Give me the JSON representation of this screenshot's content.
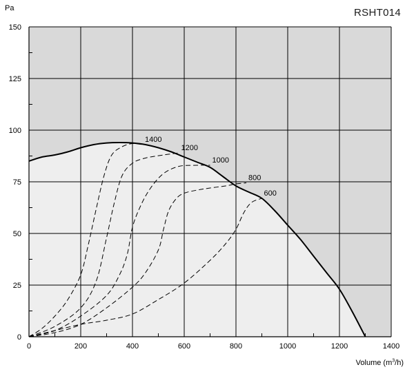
{
  "chart_data": {
    "type": "line",
    "title": "RSHT014",
    "ylabel": "Pa",
    "xlabel_main": "Volume (m",
    "xlabel_sup": "3",
    "xlabel_end": "/h)",
    "xlim": [
      0,
      1400
    ],
    "ylim": [
      0,
      150
    ],
    "x_ticks": [
      0,
      200,
      400,
      600,
      800,
      1000,
      1200,
      1400
    ],
    "y_ticks": [
      0,
      25,
      50,
      75,
      100,
      125,
      150
    ],
    "grid": true,
    "max_curve": {
      "name": "",
      "x": [
        0,
        50,
        100,
        150,
        200,
        250,
        300,
        350,
        400,
        450,
        500,
        550,
        600,
        650,
        700,
        750,
        800,
        850,
        900,
        950,
        1000,
        1050,
        1100,
        1150,
        1200,
        1250,
        1300
      ],
      "y": [
        85,
        87,
        88,
        89.5,
        91.5,
        93,
        93.8,
        94,
        93.8,
        93,
        91.5,
        89.5,
        87,
        84.5,
        82,
        77.5,
        73,
        70,
        67,
        61,
        54,
        47,
        39,
        31,
        23,
        12,
        0
      ]
    },
    "series": [
      {
        "name": "1400",
        "x": [
          0,
          50,
          100,
          150,
          200,
          230,
          260,
          290,
          320,
          360,
          400,
          440
        ],
        "y": [
          0,
          4,
          10,
          18,
          30,
          45,
          62,
          78,
          88,
          92,
          93.5,
          93
        ]
      },
      {
        "name": "1200",
        "x": [
          0,
          100,
          200,
          260,
          300,
          330,
          360,
          400,
          450,
          520,
          580
        ],
        "y": [
          0,
          5,
          14,
          27,
          48,
          65,
          78,
          84,
          86.5,
          88,
          89
        ]
      },
      {
        "name": "1000",
        "x": [
          0,
          100,
          200,
          300,
          350,
          380,
          400,
          430,
          470,
          520,
          580,
          650,
          700
        ],
        "y": [
          0,
          3,
          10,
          20,
          30,
          40,
          53,
          63,
          72,
          79,
          82.5,
          83,
          83
        ]
      },
      {
        "name": "800",
        "x": [
          0,
          100,
          200,
          300,
          400,
          450,
          500,
          520,
          540,
          570,
          600,
          650,
          700,
          760,
          800,
          840
        ],
        "y": [
          0,
          2,
          6,
          14,
          24,
          31,
          42,
          52,
          61,
          67,
          69.5,
          71,
          72,
          73,
          74,
          74.5
        ]
      },
      {
        "name": "600",
        "x": [
          0,
          100,
          200,
          300,
          400,
          500,
          600,
          700,
          760,
          800,
          830,
          860,
          900
        ],
        "y": [
          0,
          3,
          6,
          8,
          11,
          18,
          26,
          37,
          45,
          52,
          60,
          65,
          67
        ]
      }
    ],
    "series_label_positions_note": ""
  }
}
